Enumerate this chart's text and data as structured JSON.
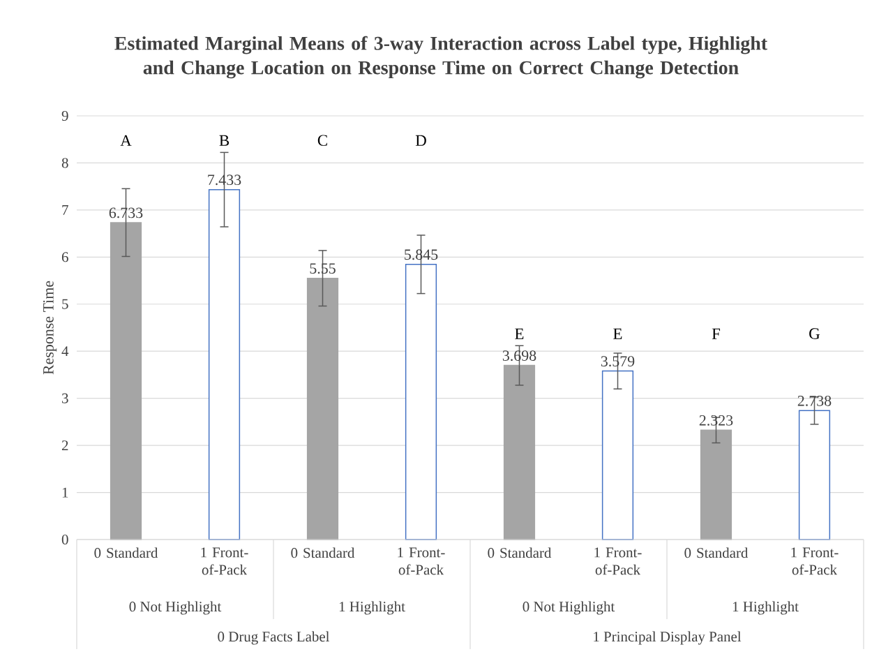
{
  "chart_data": {
    "type": "bar",
    "title": "Estimated Marginal Means of 3-way Interaction across Label type, Highlight and Change Location on Response Time on Correct Change Detection",
    "ylabel": "Response Time",
    "categories": [
      "0 Standard",
      "1 Front-of-Pack",
      "0 Standard",
      "1 Front-of-Pack",
      "0 Standard",
      "1 Front-of-Pack",
      "0 Standard",
      "1 Front-of-Pack"
    ],
    "series": [
      {
        "color": "#a5a5a5",
        "values": [
          6.733,
          null,
          5.55,
          null,
          3.698,
          null,
          2.323,
          null
        ],
        "errors": [
          0.72,
          null,
          0.59,
          null,
          0.42,
          null,
          0.27,
          null
        ]
      },
      {
        "color": "#4472c4",
        "values": [
          null,
          7.433,
          null,
          5.845,
          null,
          3.579,
          null,
          2.738
        ],
        "errors": [
          null,
          0.79,
          null,
          0.62,
          null,
          0.38,
          null,
          0.29
        ]
      }
    ],
    "ylim": [
      0,
      9
    ],
    "yticks": [
      0,
      1,
      2,
      3,
      4,
      5,
      6,
      7,
      8,
      9
    ],
    "grid": "y",
    "data_labels": true,
    "annotations": [
      "A",
      "B",
      "C",
      "D",
      "E",
      "E",
      "F",
      "G",
      "0 Not Highlight",
      "1 Highlight",
      "0 Not Highlight",
      "1 Highlight",
      "0 Drug Facts Label",
      "1 Principal Display Panel"
    ]
  }
}
